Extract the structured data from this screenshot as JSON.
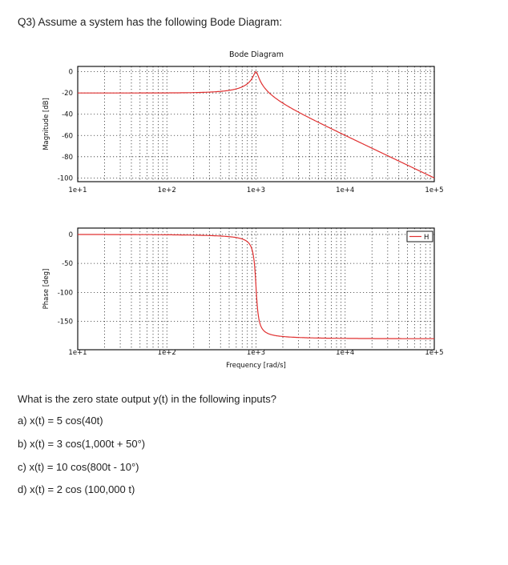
{
  "document": {
    "heading": "Q3) Assume a system has the following Bode Diagram:",
    "question": "What is the zero state output y(t) in the following inputs?",
    "items": [
      {
        "label": "a) x(t) = 5 cos(40t)"
      },
      {
        "label": "b) x(t) = 3 cos(1,000t + 50°)"
      },
      {
        "label": "c) x(t) = 10 cos(800t -  10°)"
      },
      {
        "label": "d) x(t) = 2 cos (100,000 t)"
      }
    ]
  },
  "colors": {
    "curve": "#e03030",
    "grid": "#333333",
    "frame": "#000000"
  },
  "chart_data": [
    {
      "type": "line",
      "title": "Bode Diagram",
      "xlabel": "",
      "ylabel": "Magnitude [dB]",
      "xscale": "log",
      "xlim": [
        10,
        100000
      ],
      "ylim": [
        -103,
        5
      ],
      "xticks": [
        "1e+1",
        "1e+2",
        "1e+3",
        "1e+4",
        "1e+5"
      ],
      "yticks": [
        "0",
        "-20",
        "-40",
        "-60",
        "-80",
        "-100"
      ],
      "grid": true,
      "series": [
        {
          "name": "H",
          "x": [
            10,
            100,
            200,
            500,
            700,
            900,
            1000,
            1100,
            1500,
            2000,
            5000,
            10000,
            100000
          ],
          "values": [
            -20,
            -19.9,
            -19.6,
            -17.5,
            -14.2,
            -8.2,
            0,
            -7.6,
            -21.2,
            -26.6,
            -41.6,
            -60,
            -100
          ]
        }
      ]
    },
    {
      "type": "line",
      "title": "",
      "xlabel": "Frequency [rad/s]",
      "ylabel": "Phase [deg]",
      "xscale": "log",
      "xlim": [
        10,
        100000
      ],
      "ylim": [
        -190,
        10
      ],
      "xticks": [
        "1e+1",
        "1e+2",
        "1e+3",
        "1e+4",
        "1e+5"
      ],
      "yticks": [
        "0",
        "-50",
        "-100",
        "-150"
      ],
      "grid": true,
      "legend": {
        "position": "upper right",
        "entries": [
          "H"
        ]
      },
      "series": [
        {
          "name": "H",
          "x": [
            10,
            100,
            200,
            500,
            700,
            900,
            1000,
            1100,
            1500,
            2000,
            5000,
            10000,
            100000
          ],
          "values": [
            0,
            -0.6,
            -1.2,
            -3.8,
            -7.8,
            -25.4,
            -90,
            -152.4,
            -175.4,
            -176.2,
            -179.4,
            -179.4,
            -180
          ]
        }
      ]
    }
  ]
}
